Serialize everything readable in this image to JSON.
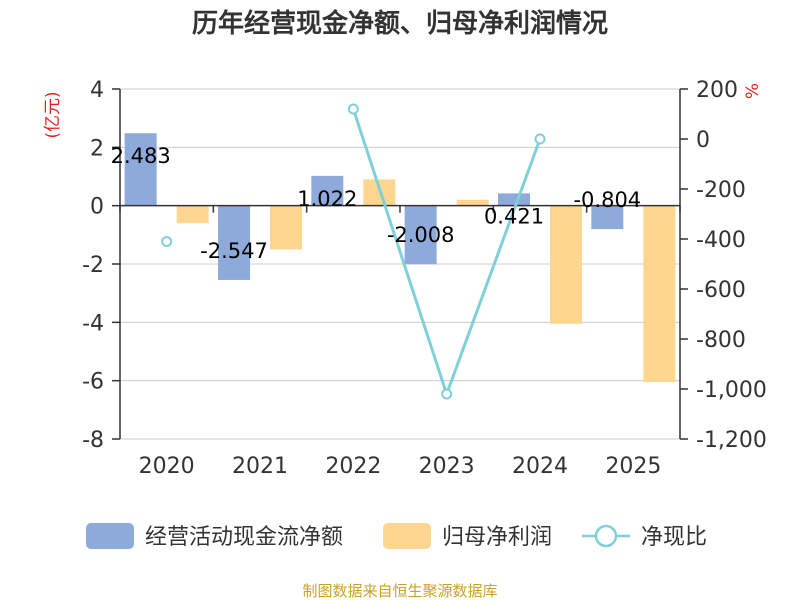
{
  "chart_data": {
    "type": "bar",
    "title": "历年经营现金净额、归母净利润情况",
    "categories": [
      "2020",
      "2021",
      "2022",
      "2023",
      "2024",
      "2025"
    ],
    "series": [
      {
        "name": "经营活动现金流净额",
        "type": "bar",
        "axis": "left",
        "color": "#8eaadb",
        "values": [
          2.483,
          -2.547,
          1.022,
          -2.008,
          0.421,
          -0.804
        ],
        "labels": [
          "2.483",
          "-2.547",
          "1.022",
          "-2.008",
          "0.421",
          "-0.804"
        ]
      },
      {
        "name": "归母净利润",
        "type": "bar",
        "axis": "left",
        "color": "#ffd68f",
        "values": [
          -0.6,
          -1.5,
          0.9,
          0.2,
          -4.05,
          -6.05
        ]
      },
      {
        "name": "净现比",
        "type": "line",
        "axis": "right",
        "color": "#7fd0d8",
        "values": [
          -410,
          null,
          120,
          -1020,
          0,
          null
        ]
      }
    ],
    "y_left": {
      "label": "(亿元)",
      "min": -8,
      "max": 4,
      "ticks": [
        4,
        2,
        0,
        -2,
        -4,
        -6,
        -8
      ],
      "tick_labels": [
        "4",
        "2",
        "0",
        "-2",
        "-4",
        "-6",
        "-8"
      ]
    },
    "y_right": {
      "label": "%",
      "min": -1200,
      "max": 200,
      "ticks": [
        200,
        0,
        -200,
        -400,
        -600,
        -800,
        -1000,
        -1200
      ],
      "tick_labels": [
        "200",
        "0",
        "-200",
        "-400",
        "-600",
        "-800",
        "-1,000",
        "-1,200"
      ]
    },
    "grid": true,
    "legend_position": "bottom"
  },
  "source": "制图数据来自恒生聚源数据库"
}
